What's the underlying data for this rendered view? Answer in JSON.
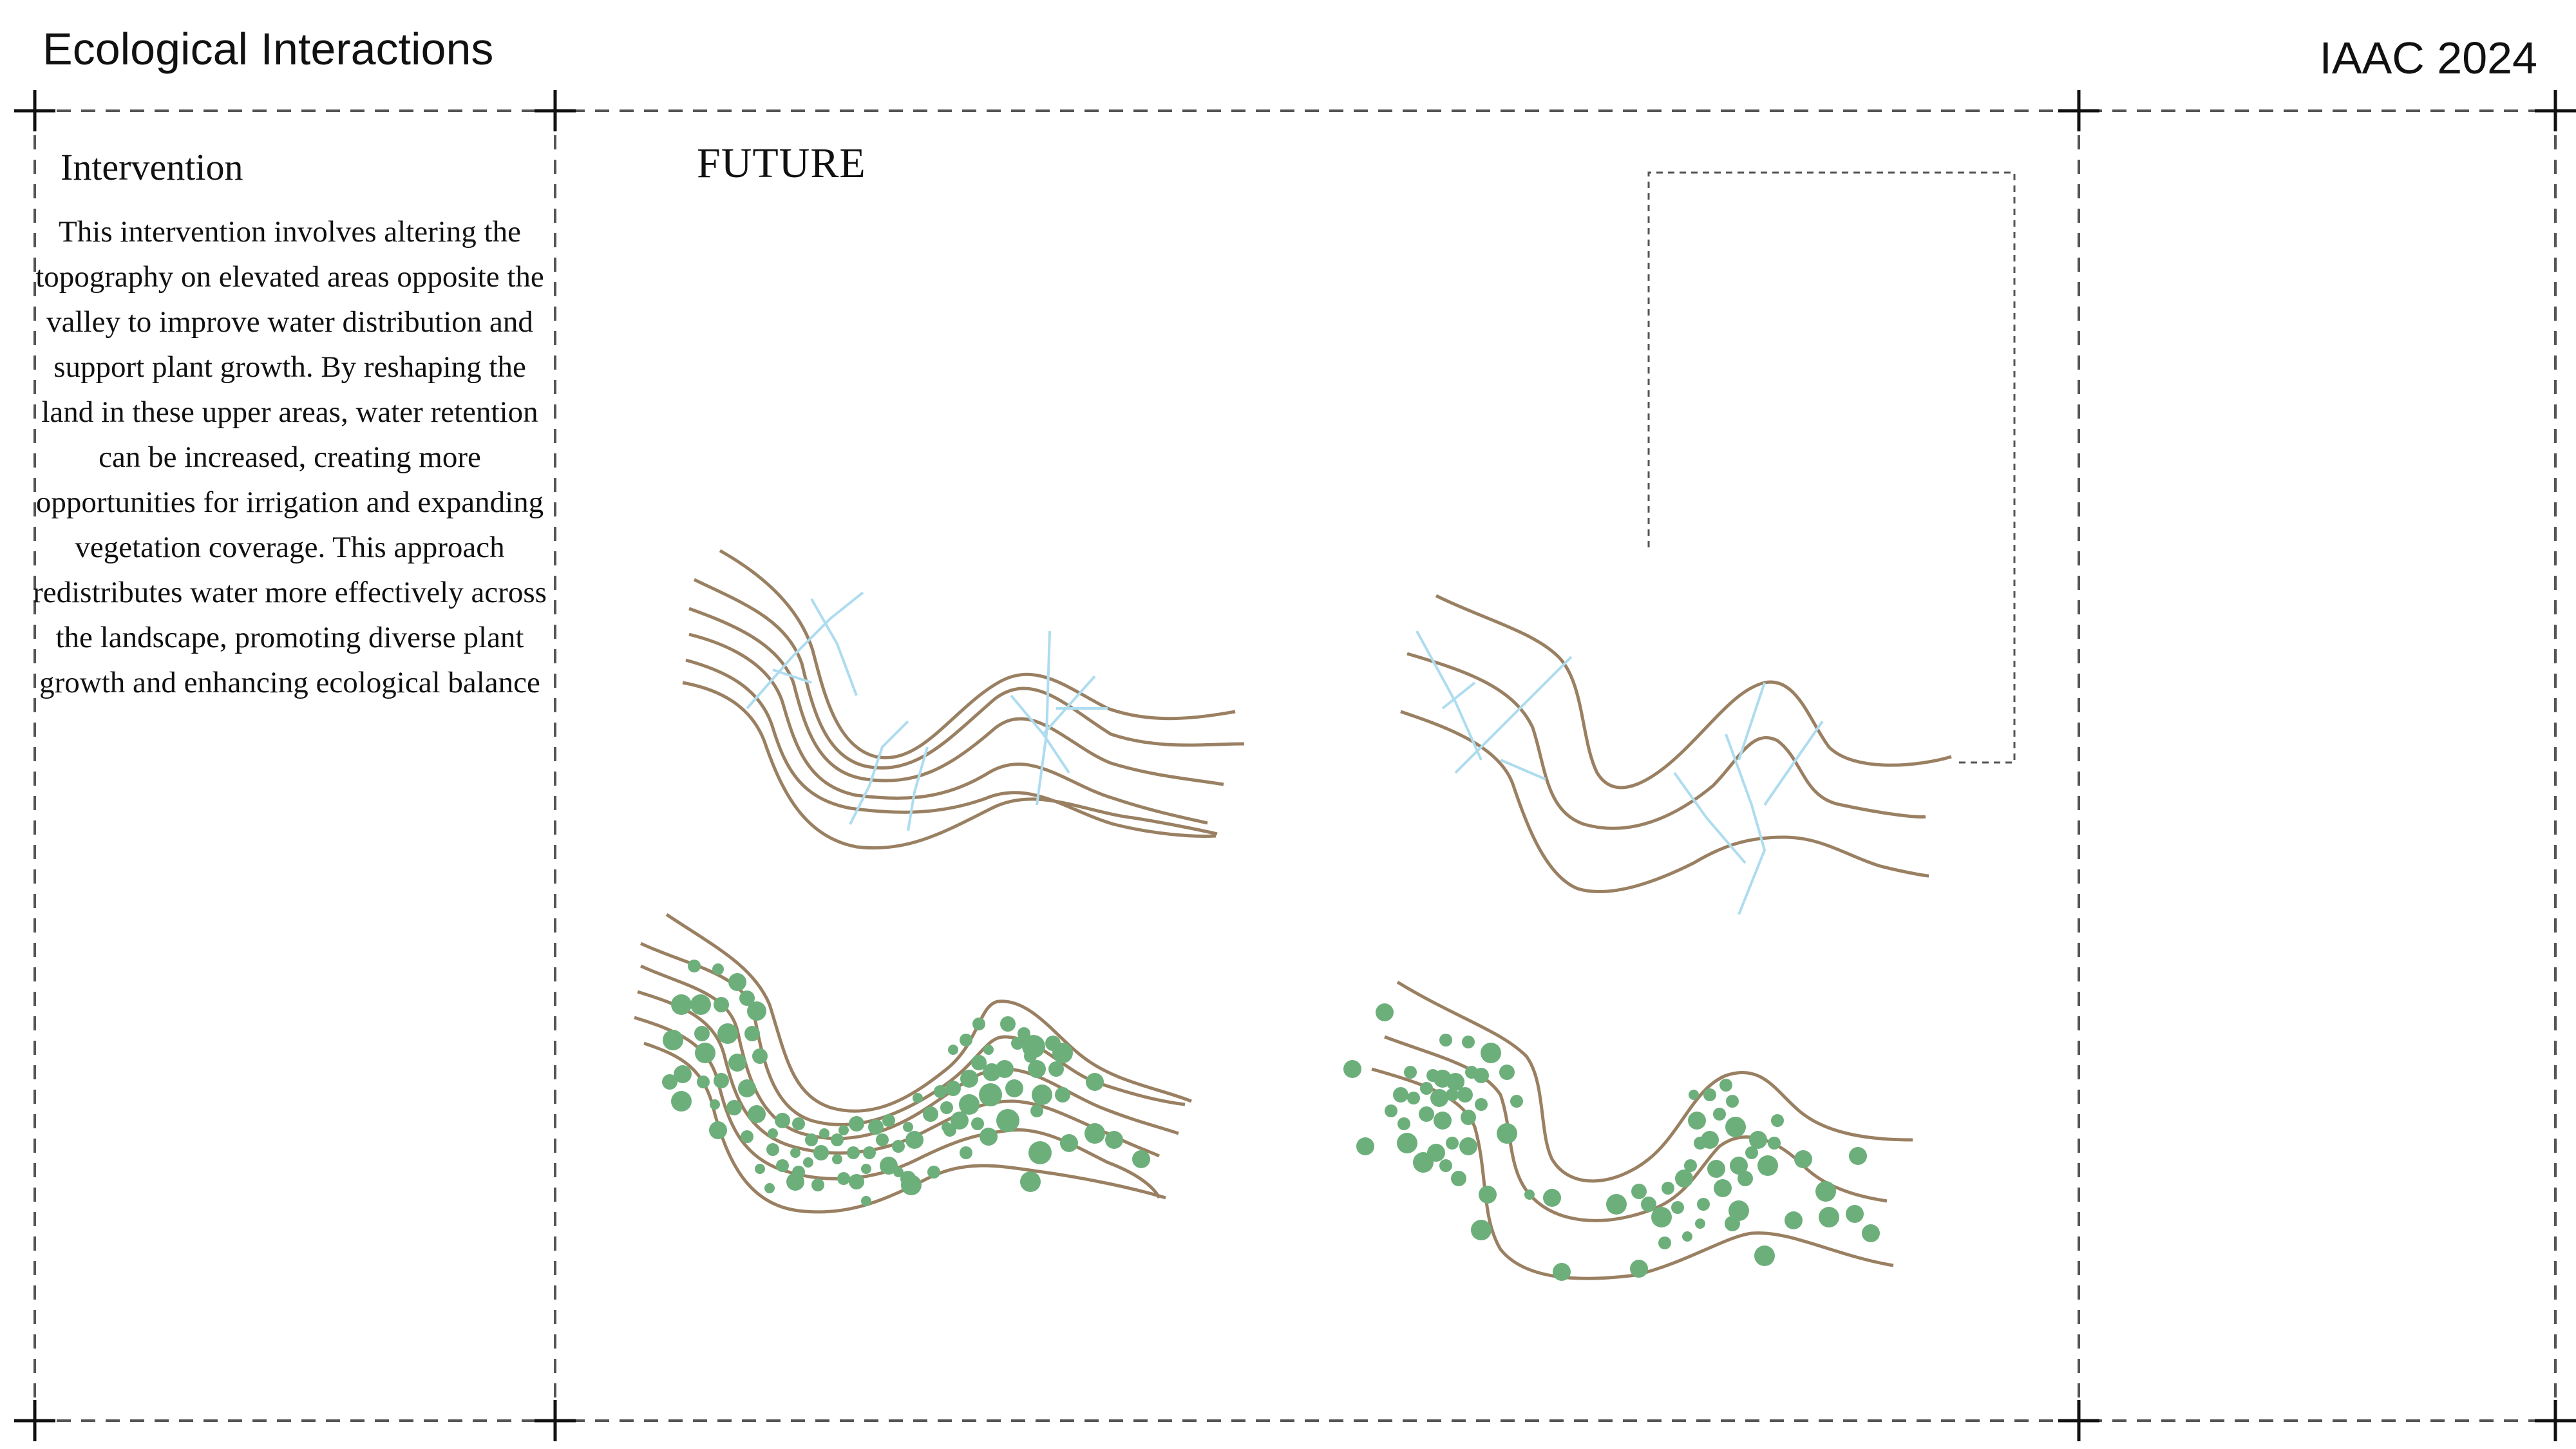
{
  "header": {
    "title": "Ecological Interactions",
    "right_label": "IAAC 2024"
  },
  "intervention_panel": {
    "title": "Intervention",
    "body": "This intervention involves altering the topography on elevated areas opposite the valley to improve water distribution and support plant growth. By reshaping the land in these upper areas, water retention can be increased, creating more opportunities for irrigation and expanding vegetation coverage. This approach redistributes water more effectively across the landscape, promoting diverse plant growth and enhancing ecological balance"
  },
  "diagram": {
    "label": "FUTURE",
    "colors": {
      "contour": "#9a8062",
      "water": "#aedcef",
      "vegetation": "#6daf7b",
      "frame": "#555555"
    }
  }
}
